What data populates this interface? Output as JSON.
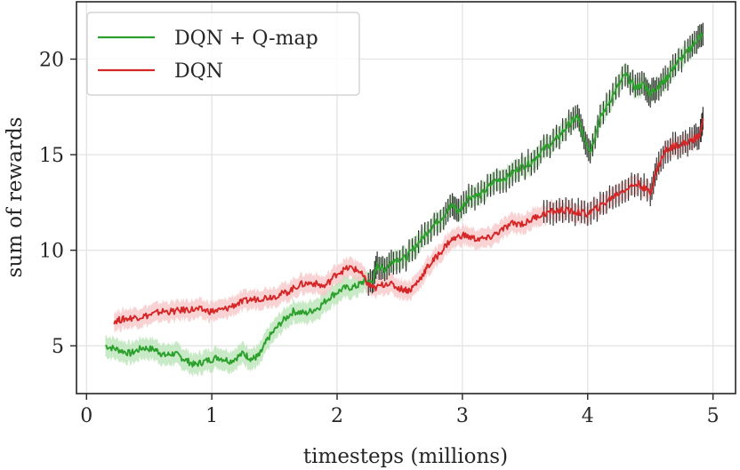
{
  "chart_data": {
    "type": "line",
    "xlabel": "timesteps (millions)",
    "ylabel": "sum of rewards",
    "xlim": [
      -0.08,
      5.18
    ],
    "ylim": [
      2.5,
      23.0
    ],
    "xticks": [
      0,
      1,
      2,
      3,
      4,
      5
    ],
    "yticks": [
      5,
      10,
      15,
      20
    ],
    "xtick_labels": [
      "0",
      "1",
      "2",
      "3",
      "4",
      "5"
    ],
    "ytick_labels": [
      "5",
      "10",
      "15",
      "20"
    ],
    "grid": true,
    "legend_position": "top-left",
    "series": [
      {
        "name": "DQN + Q-map",
        "color": "#2ca02c",
        "band_color": "#b7e3b3",
        "x": [
          0.15,
          0.25,
          0.35,
          0.45,
          0.55,
          0.62,
          0.7,
          0.78,
          0.86,
          0.95,
          1.05,
          1.15,
          1.25,
          1.32,
          1.38,
          1.45,
          1.55,
          1.65,
          1.75,
          1.85,
          1.95,
          2.05,
          2.15,
          2.22,
          2.28,
          2.32,
          2.38,
          2.45,
          2.55,
          2.65,
          2.75,
          2.85,
          2.92,
          2.97,
          3.05,
          3.15,
          3.25,
          3.35,
          3.45,
          3.55,
          3.65,
          3.75,
          3.85,
          3.92,
          3.97,
          4.02,
          4.1,
          4.2,
          4.3,
          4.38,
          4.45,
          4.5,
          4.55,
          4.62,
          4.7,
          4.8,
          4.87,
          4.92
        ],
        "values": [
          5.0,
          4.8,
          4.6,
          4.9,
          4.8,
          4.5,
          4.6,
          4.3,
          4.0,
          4.2,
          4.4,
          4.2,
          4.6,
          4.3,
          4.5,
          5.4,
          6.2,
          6.8,
          6.7,
          7.0,
          7.6,
          8.0,
          8.1,
          8.4,
          8.3,
          9.2,
          9.0,
          9.5,
          9.6,
          10.4,
          11.2,
          11.8,
          12.4,
          12.0,
          12.8,
          12.9,
          13.6,
          13.8,
          14.3,
          14.6,
          15.3,
          15.8,
          16.6,
          17.0,
          15.9,
          15.2,
          16.9,
          18.1,
          19.2,
          18.5,
          18.7,
          18.2,
          18.5,
          18.9,
          19.7,
          20.4,
          21.0,
          21.3
        ]
      },
      {
        "name": "DQN",
        "color": "#d62728",
        "band_color": "#f7c4c6",
        "x": [
          0.22,
          0.3,
          0.4,
          0.5,
          0.6,
          0.7,
          0.8,
          0.9,
          1.0,
          1.1,
          1.2,
          1.3,
          1.4,
          1.5,
          1.6,
          1.7,
          1.8,
          1.9,
          2.0,
          2.1,
          2.18,
          2.25,
          2.3,
          2.4,
          2.5,
          2.58,
          2.65,
          2.72,
          2.8,
          2.9,
          3.0,
          3.1,
          3.2,
          3.3,
          3.4,
          3.5,
          3.6,
          3.7,
          3.8,
          3.9,
          4.0,
          4.1,
          4.2,
          4.3,
          4.4,
          4.5,
          4.55,
          4.62,
          4.7,
          4.78,
          4.85,
          4.9,
          4.92
        ],
        "values": [
          6.3,
          6.4,
          6.5,
          6.6,
          6.8,
          6.8,
          6.9,
          6.9,
          6.8,
          6.9,
          7.2,
          7.4,
          7.5,
          7.6,
          7.8,
          8.2,
          8.3,
          8.1,
          8.8,
          9.1,
          8.9,
          8.2,
          8.0,
          8.3,
          8.0,
          7.9,
          8.4,
          9.1,
          9.7,
          10.5,
          10.8,
          10.6,
          10.6,
          11.0,
          11.4,
          11.4,
          11.8,
          12.0,
          12.1,
          12.0,
          11.9,
          12.3,
          12.8,
          13.2,
          13.5,
          13.0,
          14.2,
          15.2,
          15.5,
          15.6,
          15.8,
          16.1,
          16.9
        ]
      }
    ]
  }
}
